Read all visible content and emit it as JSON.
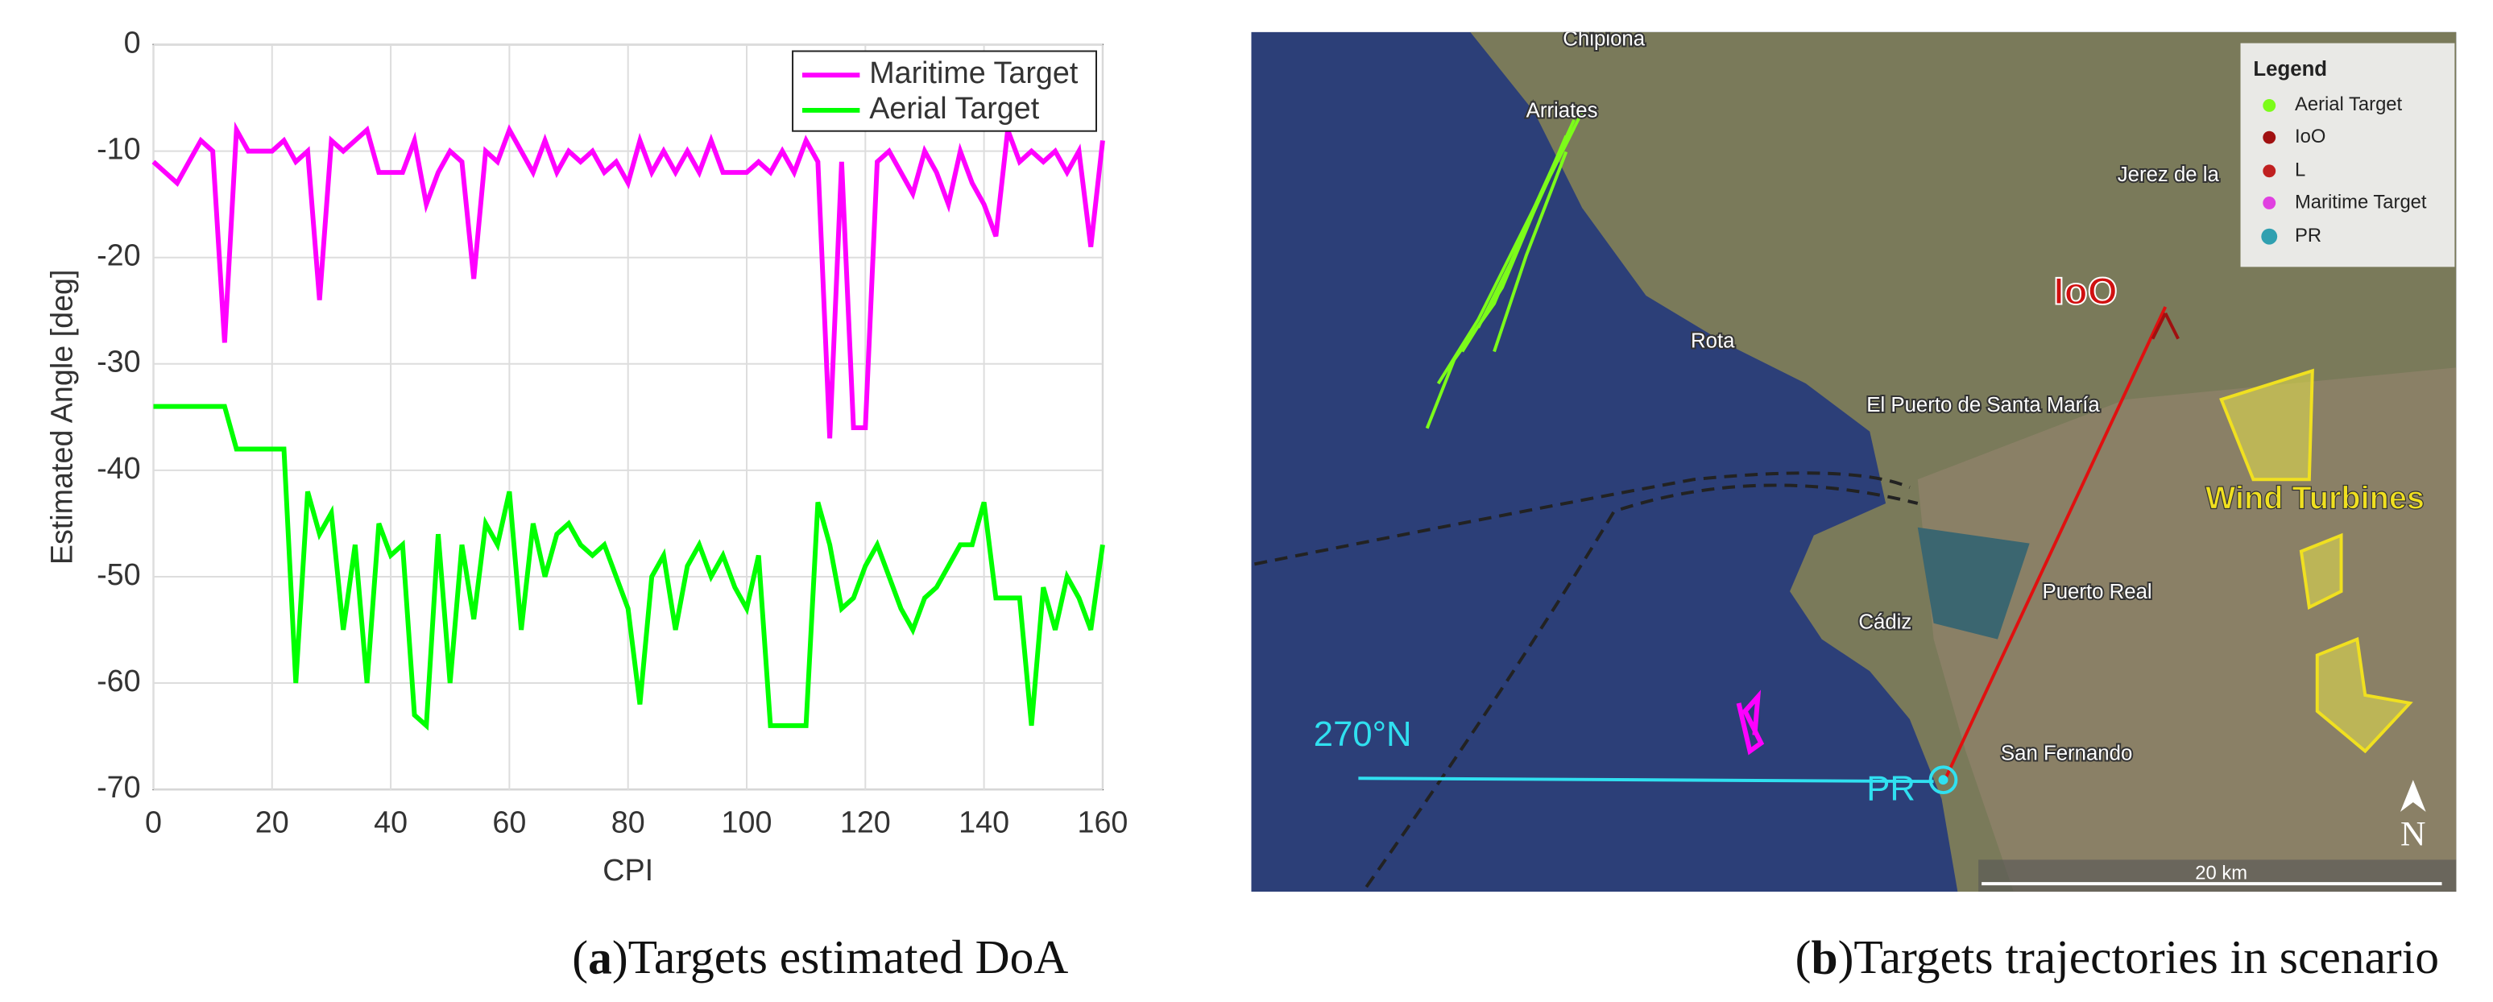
{
  "chart_data": {
    "type": "line",
    "xlabel": "CPI",
    "ylabel": "Estimated Angle [deg]",
    "x": [
      0,
      2,
      4,
      6,
      8,
      10,
      12,
      14,
      16,
      18,
      20,
      22,
      24,
      26,
      28,
      30,
      32,
      34,
      36,
      38,
      40,
      42,
      44,
      46,
      48,
      50,
      52,
      54,
      56,
      58,
      60,
      62,
      64,
      66,
      68,
      70,
      72,
      74,
      76,
      78,
      80,
      82,
      84,
      86,
      88,
      90,
      92,
      94,
      96,
      98,
      100,
      102,
      104,
      106,
      108,
      110,
      112,
      114,
      116,
      118,
      120,
      122,
      124,
      126,
      128,
      130,
      132,
      134,
      136,
      138,
      140,
      142,
      144,
      146,
      148,
      150,
      152,
      154,
      156,
      158,
      160
    ],
    "series": [
      {
        "name": "Maritime Target",
        "color": "#ff00ff",
        "values": [
          -11,
          -12,
          -13,
          -11,
          -9,
          -10,
          -28,
          -8,
          -10,
          -10,
          -10,
          -9,
          -11,
          -10,
          -24,
          -9,
          -10,
          -9,
          -8,
          -12,
          -12,
          -12,
          -9,
          -15,
          -12,
          -10,
          -11,
          -22,
          -10,
          -11,
          -8,
          -10,
          -12,
          -9,
          -12,
          -10,
          -11,
          -10,
          -12,
          -11,
          -13,
          -9,
          -12,
          -10,
          -12,
          -10,
          -12,
          -9,
          -12,
          -12,
          -12,
          -11,
          -12,
          -10,
          -12,
          -9,
          -11,
          -37,
          -11,
          -36,
          -36,
          -11,
          -10,
          -12,
          -14,
          -10,
          -12,
          -15,
          -10,
          -13,
          -15,
          -18,
          -8,
          -11,
          -10,
          -11,
          -10,
          -12,
          -10,
          -19,
          -9
        ]
      },
      {
        "name": "Aerial Target",
        "color": "#00ff00",
        "values": [
          -34,
          -34,
          -34,
          -34,
          -34,
          -34,
          -34,
          -38,
          -38,
          -38,
          -38,
          -38,
          -60,
          -42,
          -46,
          -44,
          -55,
          -47,
          -60,
          -45,
          -48,
          -47,
          -63,
          -64,
          -46,
          -60,
          -47,
          -54,
          -45,
          -47,
          -42,
          -55,
          -45,
          -50,
          -46,
          -45,
          -47,
          -48,
          -47,
          -50,
          -53,
          -62,
          -50,
          -48,
          -55,
          -49,
          -47,
          -50,
          -48,
          -51,
          -53,
          -48,
          -64,
          -64,
          -64,
          -64,
          -43,
          -47,
          -53,
          -52,
          -49,
          -47,
          -50,
          -53,
          -55,
          -52,
          -51,
          -49,
          -47,
          -47,
          -43,
          -52,
          -52,
          -52,
          -64,
          -51,
          -55,
          -50,
          -52,
          -55,
          -47
        ]
      }
    ],
    "xlim": [
      0,
      160
    ],
    "xticks": [
      0,
      20,
      40,
      60,
      80,
      100,
      120,
      140,
      160
    ],
    "ylim": [
      -70,
      0
    ],
    "yticks": [
      -70,
      -60,
      -50,
      -40,
      -30,
      -20,
      -10,
      0
    ],
    "grid": true,
    "legend": "upper right",
    "caption": {
      "label": "a",
      "text": "Targets estimated DoA"
    }
  },
  "map": {
    "places": [
      "Chipiona",
      "Arriates",
      "Jerez de la",
      "Rota",
      "El Puerto de Santa María",
      "Cádiz",
      "Puerto Real",
      "San Fernando"
    ],
    "ioo": "IoO",
    "wind": "Wind Turbines",
    "bearing": "270°N",
    "pr": "PR",
    "north": "N",
    "scale": "20 km",
    "legend": {
      "title": "Legend",
      "items": [
        "Aerial Target",
        "IoO",
        "L",
        "Maritime Target",
        "PR"
      ]
    },
    "caption": {
      "label": "b",
      "text": "Targets trajectories in scenario"
    }
  }
}
